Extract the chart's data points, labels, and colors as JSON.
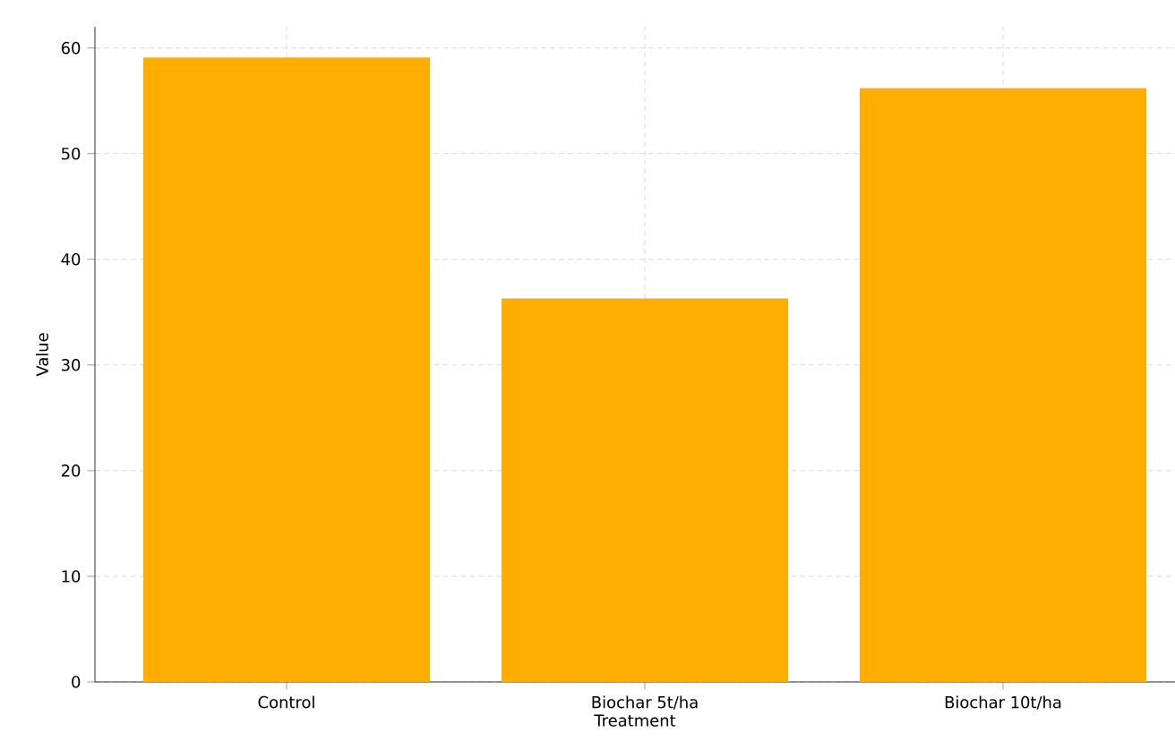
{
  "chart_data": {
    "type": "bar",
    "xlabel": "Treatment",
    "ylabel": "Value",
    "categories": [
      "Control",
      "Biochar 5t/ha",
      "Biochar 10t/ha"
    ],
    "values": [
      59.1,
      36.3,
      56.2
    ],
    "color": "#ffad00",
    "ylim": [
      0,
      62
    ],
    "yticks": [
      0,
      10,
      20,
      30,
      40,
      50,
      60
    ],
    "grid": true
  }
}
